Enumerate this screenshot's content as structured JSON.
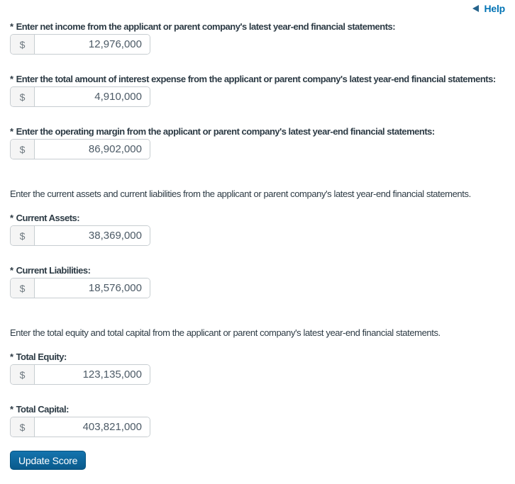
{
  "help_link": {
    "label": "Help",
    "icon": "back-triangle-icon"
  },
  "required_marker": "*",
  "fields": {
    "net_income": {
      "label": "Enter net income from the applicant or parent company's latest year-end financial statements:",
      "prefix": "$",
      "value": "12,976,000"
    },
    "interest_expense": {
      "label": "Enter the total amount of interest expense from the applicant or parent company's latest year-end financial statements:",
      "prefix": "$",
      "value": "4,910,000"
    },
    "operating_margin": {
      "label": "Enter the operating margin from the applicant or parent company's latest year-end financial statements:",
      "prefix": "$",
      "value": "86,902,000"
    },
    "current_assets": {
      "label": "Current Assets:",
      "prefix": "$",
      "value": "38,369,000"
    },
    "current_liabilities": {
      "label": "Current Liabilities:",
      "prefix": "$",
      "value": "18,576,000"
    },
    "total_equity": {
      "label": "Total Equity:",
      "prefix": "$",
      "value": "123,135,000"
    },
    "total_capital": {
      "label": "Total Capital:",
      "prefix": "$",
      "value": "403,821,000"
    }
  },
  "paragraphs": {
    "current_intro": "Enter the current assets and current liabilities from the applicant or parent company's latest year-end financial statements.",
    "equity_intro": "Enter the total equity and total capital from the applicant or parent company's latest year-end financial statements."
  },
  "buttons": {
    "update_score": "Update Score"
  },
  "colors": {
    "link": "#0374B5",
    "text": "#2D3B45",
    "input_border": "#C7CDD1",
    "addon_background": "#F5F5F5",
    "button_gradient_top": "#1474AE",
    "button_gradient_bottom": "#0A5A8C"
  }
}
